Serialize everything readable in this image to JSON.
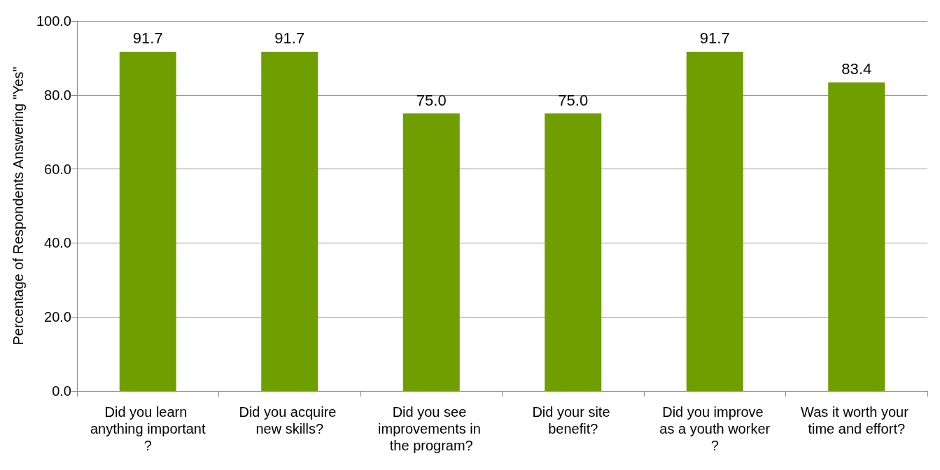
{
  "chart_data": {
    "type": "bar",
    "ylabel": "Percentage of Respondents Answering \"Yes\"",
    "categories": [
      "Did you learn anything important?",
      "Did you acquire new skills?",
      "Did you see improvements in the program?",
      "Did your site benefit?",
      "Did you improve as a youth worker?",
      "Was it worth your time and effort?"
    ],
    "values": [
      91.7,
      91.7,
      75.0,
      75.0,
      91.7,
      83.4
    ],
    "value_labels": [
      "91.7",
      "91.7",
      "75.0",
      "75.0",
      "91.7",
      "83.4"
    ],
    "color": "#6e9e00",
    "ylim": [
      0,
      100
    ],
    "yticks": [
      {
        "value": 0,
        "label": "0.0"
      },
      {
        "value": 20,
        "label": "20.0"
      },
      {
        "value": 40,
        "label": "40.0"
      },
      {
        "value": 60,
        "label": "60.0"
      },
      {
        "value": 80,
        "label": "80.0"
      },
      {
        "value": 100,
        "label": "100.0"
      }
    ],
    "grid": "y"
  }
}
